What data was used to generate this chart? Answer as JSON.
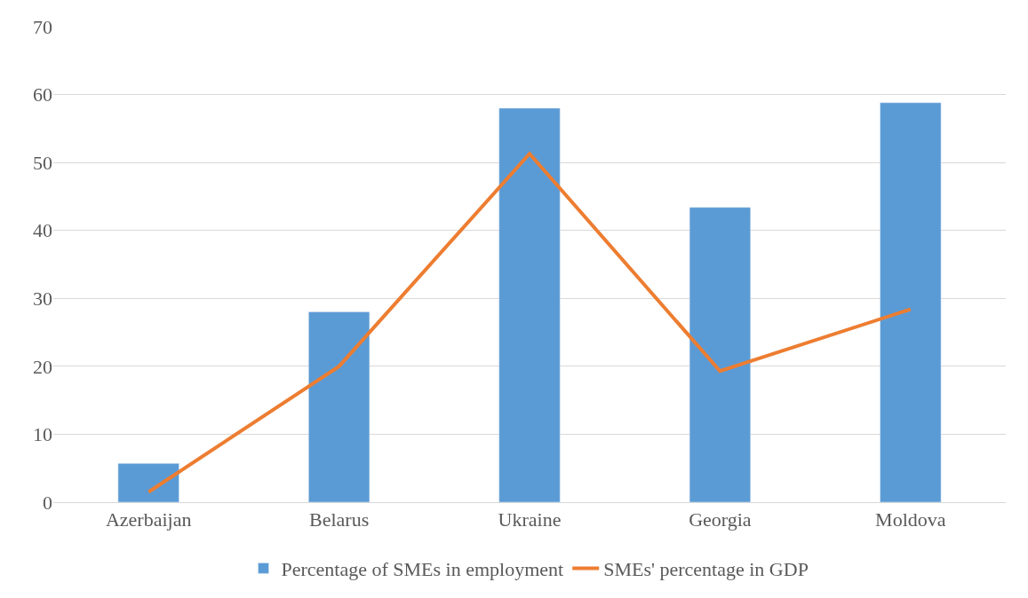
{
  "chart_data": {
    "type": "bar",
    "categories": [
      "Azerbaijan",
      "Belarus",
      "Ukraine",
      "Georgia",
      "Moldova"
    ],
    "series": [
      {
        "name": "Percentage of SMEs in employment",
        "color": "#5b9bd5",
        "values": [
          5.7,
          28,
          58,
          43.4,
          58.8
        ]
      },
      {
        "name": "SMEs' percentage in GDP",
        "type": "line",
        "color": "#ed7d31",
        "values": [
          1.5,
          20,
          51.3,
          19.3,
          28.4
        ]
      }
    ],
    "ylim": [
      0,
      70
    ],
    "yticks": [
      0,
      10,
      20,
      30,
      40,
      50,
      60,
      70
    ],
    "grid": "y",
    "legend": "bottom",
    "marker": "none",
    "line_style": "solid"
  }
}
